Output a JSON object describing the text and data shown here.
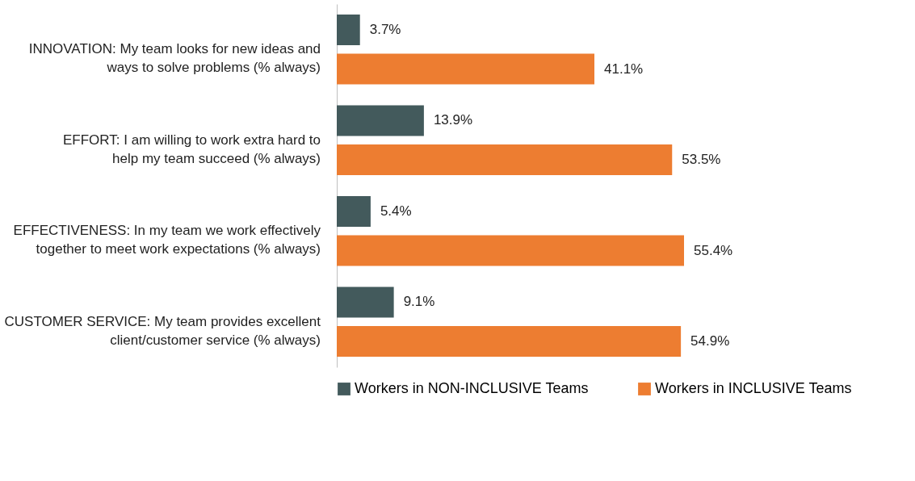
{
  "chart_data": {
    "type": "bar",
    "orientation": "horizontal",
    "categories": [
      "INNOVATION: My team looks for new ideas and ways to solve problems (% always)",
      "EFFORT: I am willing to work extra hard to help my team succeed (% always)",
      "EFFECTIVENESS: In my team we work effectively together to meet work expectations (% always)",
      "CUSTOMER SERVICE: My team provides excellent client/customer service (% always)"
    ],
    "series": [
      {
        "name": "Workers in NON-INCLUSIVE Teams",
        "color": "#435a5c",
        "values": [
          3.7,
          13.9,
          5.4,
          9.1
        ],
        "value_labels": [
          "3.7%",
          "13.9%",
          "5.4%",
          "9.1%"
        ]
      },
      {
        "name": "Workers in INCLUSIVE Teams",
        "color": "#ed7d31",
        "values": [
          41.1,
          53.5,
          55.4,
          54.9
        ],
        "value_labels": [
          "41.1%",
          "53.5%",
          "55.4%",
          "54.9%"
        ]
      }
    ],
    "legend": "bottom",
    "grid": false
  }
}
